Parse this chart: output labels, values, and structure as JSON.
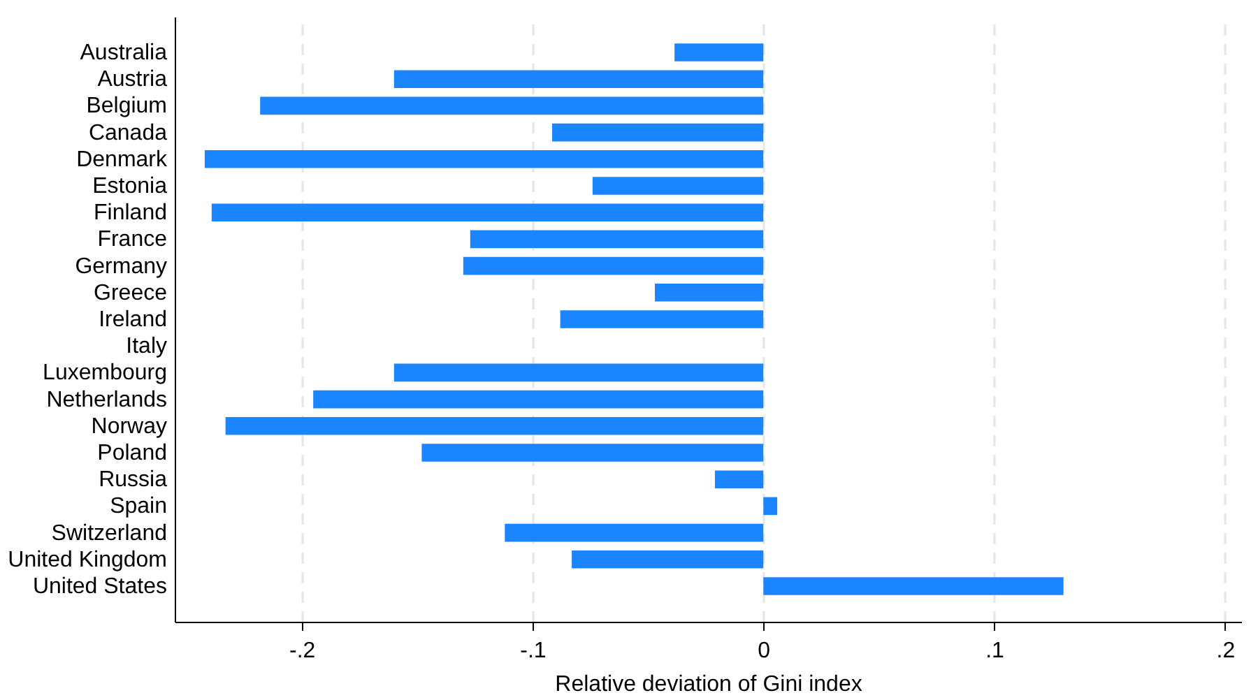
{
  "chart_data": {
    "type": "bar",
    "orientation": "horizontal",
    "xlabel": "Relative deviation of Gini index",
    "categories": [
      "Australia",
      "Austria",
      "Belgium",
      "Canada",
      "Denmark",
      "Estonia",
      "Finland",
      "France",
      "Germany",
      "Greece",
      "Ireland",
      "Italy",
      "Luxembourg",
      "Netherlands",
      "Norway",
      "Poland",
      "Russia",
      "Spain",
      "Switzerland",
      "United Kingdom",
      "United States"
    ],
    "values": [
      -0.0385,
      -0.16,
      -0.218,
      -0.0915,
      -0.242,
      -0.074,
      -0.239,
      -0.127,
      -0.13,
      -0.047,
      -0.088,
      0,
      -0.16,
      -0.195,
      -0.233,
      -0.148,
      -0.021,
      0.006,
      -0.112,
      -0.083,
      0.13
    ],
    "color": "#1a85ff",
    "xlim": [
      -0.255,
      0.207
    ],
    "xticks": [
      {
        "value": -0.2,
        "label": "-.2"
      },
      {
        "value": -0.1,
        "label": "-.1"
      },
      0,
      {
        "value": 0.1,
        "label": ".1"
      },
      {
        "value": 0.2,
        "label": ".2"
      }
    ],
    "grid": "x"
  }
}
